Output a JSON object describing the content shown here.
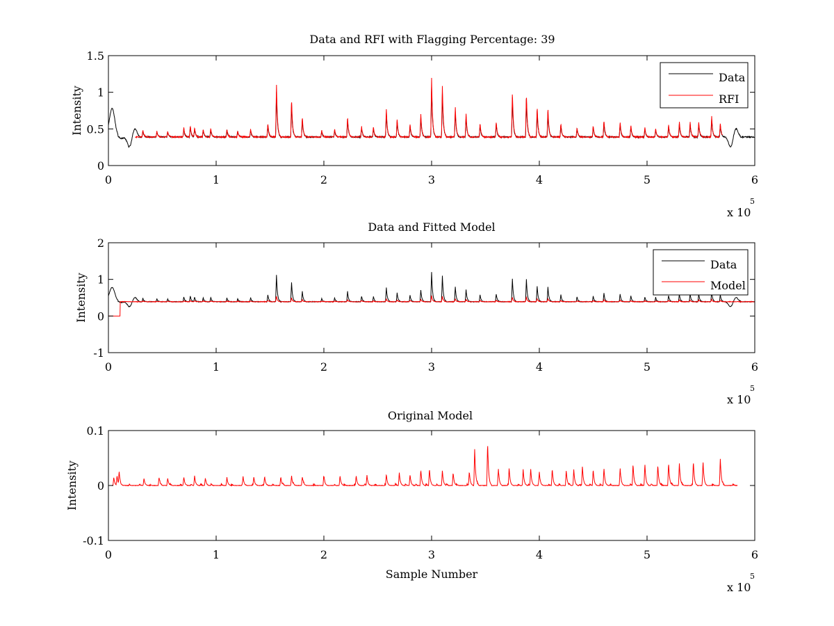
{
  "chart_data": [
    {
      "type": "line",
      "title": "Data and RFI with Flagging Percentage: 39",
      "xlabel": "",
      "ylabel": "Intensity",
      "xlim": [
        0,
        600000
      ],
      "ylim": [
        0,
        1.5
      ],
      "x_ticks": [
        "0",
        "1",
        "2",
        "3",
        "4",
        "5",
        "6"
      ],
      "y_ticks": [
        "0",
        "0.5",
        "1",
        "1.5"
      ],
      "x_exponent": {
        "base": "x 10",
        "power": "5"
      },
      "legend": {
        "position": "top-right",
        "entries": [
          {
            "label": "Data",
            "color": "#000000"
          },
          {
            "label": "RFI",
            "color": "#ff0000"
          }
        ]
      },
      "series": [
        {
          "name": "Data",
          "color": "#000000",
          "baseline": 0.39,
          "spike_scale": 0.85,
          "features": [
            [
              2000,
              0.55
            ],
            [
              4000,
              0.65
            ],
            [
              7000,
              0.42
            ],
            [
              12000,
              0.37
            ],
            [
              20000,
              0.24
            ],
            [
              24000,
              0.52
            ],
            [
              578000,
              0.24
            ],
            [
              582000,
              0.52
            ]
          ]
        },
        {
          "name": "RFI",
          "color": "#ff0000",
          "x_range": [
            25000,
            570000
          ],
          "baseline": 0.39,
          "spike_scale": 1.0
        }
      ],
      "spikes": [
        [
          32000,
          0.49
        ],
        [
          45000,
          0.47
        ],
        [
          55000,
          0.47
        ],
        [
          70000,
          0.52
        ],
        [
          76000,
          0.55
        ],
        [
          80000,
          0.52
        ],
        [
          88000,
          0.5
        ],
        [
          95000,
          0.51
        ],
        [
          110000,
          0.5
        ],
        [
          120000,
          0.48
        ],
        [
          132000,
          0.5
        ],
        [
          148000,
          0.58
        ],
        [
          156000,
          1.12
        ],
        [
          170000,
          0.92
        ],
        [
          180000,
          0.67
        ],
        [
          198000,
          0.48
        ],
        [
          210000,
          0.5
        ],
        [
          222000,
          0.67
        ],
        [
          235000,
          0.54
        ],
        [
          246000,
          0.53
        ],
        [
          258000,
          0.78
        ],
        [
          268000,
          0.64
        ],
        [
          280000,
          0.57
        ],
        [
          290000,
          0.71
        ],
        [
          300000,
          1.2
        ],
        [
          310000,
          1.1
        ],
        [
          322000,
          0.8
        ],
        [
          332000,
          0.72
        ],
        [
          345000,
          0.58
        ],
        [
          360000,
          0.6
        ],
        [
          375000,
          1.02
        ],
        [
          388000,
          1.0
        ],
        [
          398000,
          0.81
        ],
        [
          408000,
          0.79
        ],
        [
          420000,
          0.58
        ],
        [
          435000,
          0.52
        ],
        [
          450000,
          0.55
        ],
        [
          460000,
          0.62
        ],
        [
          475000,
          0.6
        ],
        [
          485000,
          0.55
        ],
        [
          498000,
          0.52
        ],
        [
          508000,
          0.51
        ],
        [
          520000,
          0.56
        ],
        [
          530000,
          0.6
        ],
        [
          540000,
          0.6
        ],
        [
          548000,
          0.6
        ],
        [
          560000,
          0.68
        ],
        [
          568000,
          0.58
        ]
      ]
    },
    {
      "type": "line",
      "title": "Data and Fitted Model",
      "xlabel": "",
      "ylabel": "Intensity",
      "xlim": [
        0,
        600000
      ],
      "ylim": [
        -1,
        2
      ],
      "x_ticks": [
        "0",
        "1",
        "2",
        "3",
        "4",
        "5",
        "6"
      ],
      "y_ticks": [
        "-1",
        "0",
        "1",
        "2"
      ],
      "x_exponent": {
        "base": "x 10",
        "power": "5"
      },
      "legend": {
        "position": "top-right",
        "entries": [
          {
            "label": "Data",
            "color": "#000000"
          },
          {
            "label": "Model",
            "color": "#ff0000"
          }
        ]
      },
      "series": [
        {
          "name": "Data",
          "color": "#000000",
          "baseline": 0.39,
          "spike_scale": 1.0,
          "features": [
            [
              2000,
              0.55
            ],
            [
              4000,
              0.65
            ],
            [
              7000,
              0.42
            ],
            [
              12000,
              0.37
            ],
            [
              20000,
              0.24
            ],
            [
              24000,
              0.52
            ],
            [
              578000,
              0.24
            ],
            [
              582000,
              0.52
            ]
          ]
        },
        {
          "name": "Model",
          "color": "#ff0000",
          "baseline": 0.39,
          "spike_scale": 0.2,
          "step": {
            "x_end": 11000,
            "value": 0.0
          }
        }
      ]
    },
    {
      "type": "line",
      "title": "Original Model",
      "xlabel": "Sample Number",
      "ylabel": "Intensity",
      "xlim": [
        0,
        600000
      ],
      "ylim": [
        -0.1,
        0.1
      ],
      "x_ticks": [
        "0",
        "1",
        "2",
        "3",
        "4",
        "5",
        "6"
      ],
      "y_ticks": [
        "-0.1",
        "0",
        "0.1"
      ],
      "x_exponent": {
        "base": "x 10",
        "power": "5"
      },
      "series": [
        {
          "name": "Model",
          "color": "#ff0000",
          "baseline": 0.0,
          "x_range": [
            3000,
            584000
          ]
        }
      ],
      "spikes": [
        [
          5000,
          0.015
        ],
        [
          8000,
          0.018
        ],
        [
          10000,
          0.022
        ],
        [
          33000,
          0.013
        ],
        [
          47000,
          0.015
        ],
        [
          55000,
          0.014
        ],
        [
          70000,
          0.016
        ],
        [
          80000,
          0.018
        ],
        [
          90000,
          0.014
        ],
        [
          110000,
          0.015
        ],
        [
          125000,
          0.016
        ],
        [
          135000,
          0.016
        ],
        [
          145000,
          0.017
        ],
        [
          160000,
          0.016
        ],
        [
          170000,
          0.018
        ],
        [
          180000,
          0.016
        ],
        [
          200000,
          0.017
        ],
        [
          215000,
          0.018
        ],
        [
          230000,
          0.018
        ],
        [
          240000,
          0.019
        ],
        [
          258000,
          0.02
        ],
        [
          270000,
          0.024
        ],
        [
          280000,
          0.02
        ],
        [
          290000,
          0.029
        ],
        [
          298000,
          0.031
        ],
        [
          310000,
          0.028
        ],
        [
          320000,
          0.024
        ],
        [
          335000,
          0.026
        ],
        [
          340000,
          0.068
        ],
        [
          352000,
          0.078
        ],
        [
          362000,
          0.03
        ],
        [
          372000,
          0.032
        ],
        [
          385000,
          0.03
        ],
        [
          392000,
          0.031
        ],
        [
          400000,
          0.024
        ],
        [
          412000,
          0.031
        ],
        [
          425000,
          0.028
        ],
        [
          432000,
          0.03
        ],
        [
          440000,
          0.036
        ],
        [
          450000,
          0.03
        ],
        [
          460000,
          0.032
        ],
        [
          475000,
          0.031
        ],
        [
          487000,
          0.04
        ],
        [
          498000,
          0.04
        ],
        [
          510000,
          0.038
        ],
        [
          520000,
          0.042
        ],
        [
          530000,
          0.041
        ],
        [
          543000,
          0.044
        ],
        [
          552000,
          0.043
        ],
        [
          568000,
          0.05
        ]
      ]
    }
  ]
}
